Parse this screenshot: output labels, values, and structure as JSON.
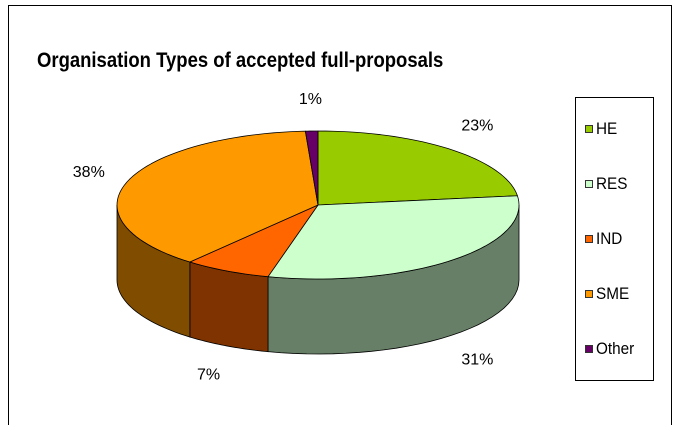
{
  "chart_data": {
    "type": "pie",
    "title": "Organisation Types of accepted full-proposals",
    "categories": [
      "HE",
      "RES",
      "IND",
      "SME",
      "Other"
    ],
    "values": [
      23,
      31,
      7,
      38,
      1
    ],
    "value_labels": [
      "23%",
      "31%",
      "7%",
      "38%",
      "1%"
    ],
    "colors": {
      "top": [
        "#99cc00",
        "#ccffcc",
        "#ff6600",
        "#ff9900",
        "#660066"
      ],
      "side": [
        "#4c6600",
        "#667f66",
        "#7f3300",
        "#7f4c00",
        "#330033"
      ]
    },
    "legend": "right",
    "three_d": true
  }
}
